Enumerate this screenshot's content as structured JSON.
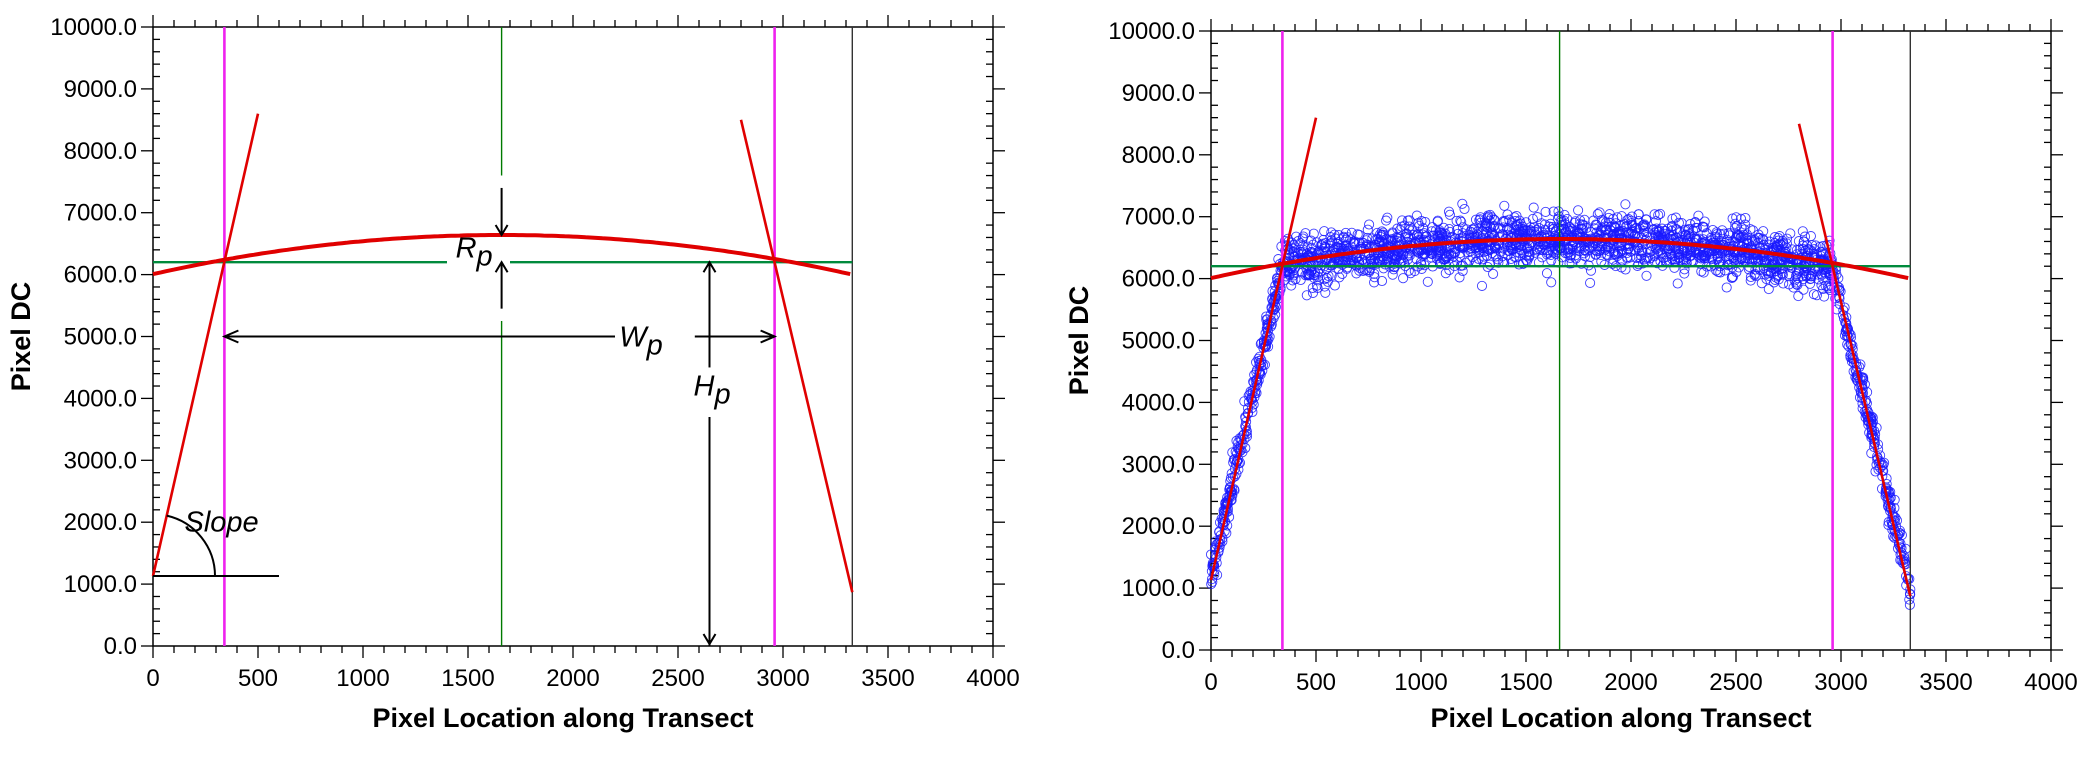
{
  "chart_data": [
    {
      "type": "line",
      "panel": "left",
      "title": "",
      "xlabel": "Pixel Location along Transect",
      "ylabel": "Pixel DC",
      "xlim": [
        0,
        4000
      ],
      "ylim": [
        0,
        10000
      ],
      "xticks": [
        0,
        500,
        1000,
        1500,
        2000,
        2500,
        3000,
        3500,
        4000
      ],
      "xtick_labels": [
        "0",
        "500",
        "1000",
        "1500",
        "2000",
        "2500",
        "3000",
        "3500",
        "4000"
      ],
      "yticks": [
        0,
        1000,
        2000,
        3000,
        4000,
        5000,
        6000,
        7000,
        8000,
        9000,
        10000
      ],
      "ytick_labels": [
        "0.0",
        "1000.0",
        "2000.0",
        "3000.0",
        "4000.0",
        "5000.0",
        "6000.0",
        "7000.0",
        "8000.0",
        "9000.0",
        "10000.0"
      ],
      "grid": false,
      "series": [
        {
          "name": "rising-edge-fit",
          "color": "#e00000",
          "x": [
            0,
            500
          ],
          "y": [
            1130,
            8600
          ]
        },
        {
          "name": "plateau-fit",
          "color": "#e00000",
          "kind": "parabola",
          "x_range": [
            0,
            3330
          ],
          "vertex_x": 1660,
          "vertex_y": 6640,
          "y_at_ends": 6000
        },
        {
          "name": "falling-edge-fit",
          "color": "#e00000",
          "x": [
            2800,
            3330
          ],
          "y": [
            8500,
            870
          ]
        }
      ],
      "reference_lines": {
        "horizontal": [
          {
            "name": "half-height-line",
            "y": 6200,
            "x_range": [
              0,
              3330
            ],
            "color": "#008a3c"
          }
        ],
        "vertical": [
          {
            "name": "left-edge-line",
            "x": 340,
            "color": "#ee22ee"
          },
          {
            "name": "right-edge-line",
            "x": 2960,
            "color": "#ee22ee"
          },
          {
            "name": "center-line",
            "x": 1660,
            "color": "#007a00"
          },
          {
            "name": "transect-end-line",
            "x": 3330,
            "color": "#333333"
          }
        ]
      },
      "annotations": [
        {
          "label": "R",
          "subscript": "p",
          "meaning": "plateau roundness",
          "x": 1660,
          "y_from": 6640,
          "y_to": 6200
        },
        {
          "label": "W",
          "subscript": "p",
          "meaning": "plateau width",
          "x_from": 340,
          "x_to": 2960,
          "y": 5000
        },
        {
          "label": "H",
          "subscript": "p",
          "meaning": "plateau height",
          "x": 2650,
          "y_from": 6200,
          "y_to": 0
        },
        {
          "label": "Slope",
          "subscript": "",
          "meaning": "edge slope",
          "x": 0,
          "y": 1130,
          "baseline_x_to": 600
        }
      ]
    },
    {
      "type": "scatter",
      "panel": "right",
      "title": "",
      "xlabel": "Pixel Location along Transect",
      "ylabel": "Pixel DC",
      "xlim": [
        0,
        4000
      ],
      "ylim": [
        0,
        10000
      ],
      "xticks": [
        0,
        500,
        1000,
        1500,
        2000,
        2500,
        3000,
        3500,
        4000
      ],
      "xtick_labels": [
        "0",
        "500",
        "1000",
        "1500",
        "2000",
        "2500",
        "3000",
        "3500",
        "4000"
      ],
      "yticks": [
        0,
        1000,
        2000,
        3000,
        4000,
        5000,
        6000,
        7000,
        8000,
        9000,
        10000
      ],
      "ytick_labels": [
        "0.0",
        "1000.0",
        "2000.0",
        "3000.0",
        "4000.0",
        "5000.0",
        "6000.0",
        "7000.0",
        "8000.0",
        "9000.0",
        "10000.0"
      ],
      "grid": false,
      "scatter": {
        "name": "pixel-samples",
        "color": "#1a1aff",
        "marker": "open-circle",
        "segments": [
          {
            "x_range": [
              0,
              340
            ],
            "y_start": 1200,
            "y_end": 6200,
            "noise": 220,
            "count": 260
          },
          {
            "x_range": [
              340,
              2960
            ],
            "kind": "parabola",
            "vertex_x": 1660,
            "vertex_y": 6640,
            "y_at_ends": 6200,
            "noise": 280,
            "count": 1900
          },
          {
            "x_range": [
              2960,
              3330
            ],
            "y_start": 6200,
            "y_end": 950,
            "noise": 200,
            "count": 240
          }
        ]
      },
      "series": [
        {
          "name": "rising-edge-fit",
          "color": "#e00000",
          "x": [
            0,
            500
          ],
          "y": [
            1130,
            8600
          ]
        },
        {
          "name": "plateau-fit",
          "color": "#e00000",
          "kind": "parabola",
          "x_range": [
            0,
            3330
          ],
          "vertex_x": 1660,
          "vertex_y": 6640,
          "y_at_ends": 6000
        },
        {
          "name": "falling-edge-fit",
          "color": "#e00000",
          "x": [
            2800,
            3330
          ],
          "y": [
            8500,
            870
          ]
        }
      ],
      "reference_lines": {
        "horizontal": [
          {
            "name": "half-height-line",
            "y": 6200,
            "x_range": [
              0,
              3330
            ],
            "color": "#008a3c"
          }
        ],
        "vertical": [
          {
            "name": "left-edge-line",
            "x": 340,
            "color": "#ee22ee"
          },
          {
            "name": "right-edge-line",
            "x": 2960,
            "color": "#ee22ee"
          },
          {
            "name": "center-line",
            "x": 1660,
            "color": "#007a00"
          },
          {
            "name": "transect-end-line",
            "x": 3330,
            "color": "#333333"
          }
        ]
      }
    }
  ]
}
